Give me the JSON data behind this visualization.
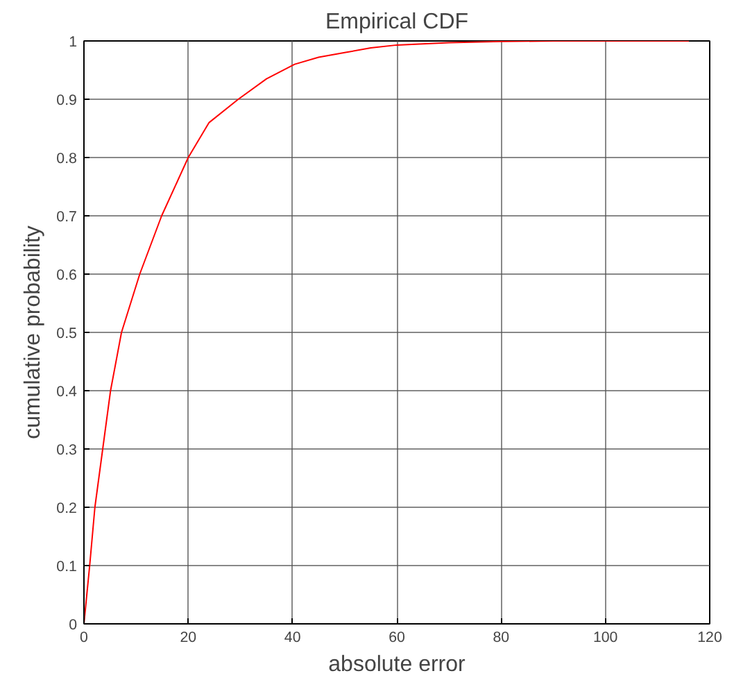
{
  "chart_data": {
    "type": "line",
    "title": "Empirical CDF",
    "xlabel": "absolute error",
    "ylabel": "cumulative probability",
    "x": [
      0,
      1.1,
      2.1,
      3.6,
      5.1,
      7.2,
      10.7,
      14.9,
      20,
      24,
      29.6,
      35,
      40.4,
      45,
      50,
      55,
      60,
      70,
      80,
      90,
      100,
      116
    ],
    "series": [
      {
        "color": "#ff0000",
        "values": [
          0,
          0.1,
          0.2,
          0.3,
          0.4,
          0.5,
          0.6,
          0.7,
          0.8,
          0.86,
          0.9,
          0.935,
          0.96,
          0.972,
          0.98,
          0.988,
          0.993,
          0.997,
          0.999,
          1,
          1,
          1
        ]
      }
    ],
    "xlim": [
      0,
      120
    ],
    "ylim": [
      0,
      1
    ],
    "xticks": [
      0,
      20,
      40,
      60,
      80,
      100,
      120
    ],
    "yticks": [
      0,
      0.1,
      0.2,
      0.3,
      0.4,
      0.5,
      0.6,
      0.7,
      0.8,
      0.9,
      1
    ],
    "grid": true
  }
}
